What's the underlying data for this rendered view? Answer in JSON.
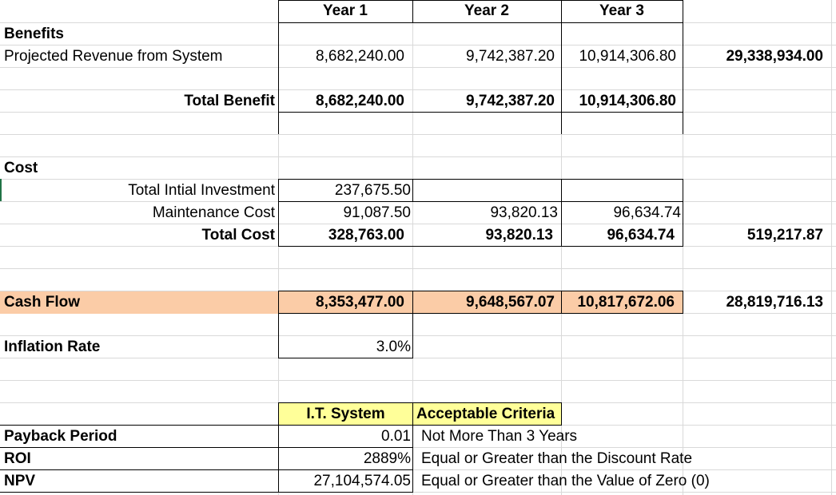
{
  "header": {
    "year1": "Year 1",
    "year2": "Year 2",
    "year3": "Year 3"
  },
  "benefits": {
    "section_label": "Benefits",
    "revenue_label": "Projected Revenue from System",
    "revenue": [
      "8,682,240.00",
      "9,742,387.20",
      "10,914,306.80"
    ],
    "revenue_total": "29,338,934.00",
    "total_label": "Total Benefit",
    "total": [
      "8,682,240.00",
      "9,742,387.20",
      "10,914,306.80"
    ]
  },
  "cost": {
    "section_label": "Cost",
    "investment_label": "Total Intial Investment",
    "investment": "237,675.50",
    "maintenance_label": "Maintenance Cost",
    "maintenance": [
      "91,087.50",
      "93,820.13",
      "96,634.74"
    ],
    "total_label": "Total Cost",
    "total": [
      "328,763.00",
      "93,820.13",
      "96,634.74"
    ],
    "total_sum": "519,217.87"
  },
  "cash_flow": {
    "label": "Cash Flow",
    "values": [
      "8,353,477.00",
      "9,648,567.07",
      "10,817,672.06"
    ],
    "total": "28,819,716.13"
  },
  "inflation": {
    "label": "Inflation Rate",
    "value": "3.0%"
  },
  "evaluation": {
    "system_header": "I.T. System",
    "criteria_header": "Acceptable Criteria",
    "rows": [
      {
        "label": "Payback Period",
        "value": "0.01",
        "criteria": "Not More Than 3 Years"
      },
      {
        "label": "ROI",
        "value": "2889%",
        "criteria": "Equal or Greater than the Discount Rate"
      },
      {
        "label": "NPV",
        "value": "27,104,574.05",
        "criteria": "Equal or Greater than the Value of Zero (0)"
      }
    ]
  },
  "colors": {
    "cash_flow_fill": "#fbcca7",
    "header_fill": "#ffff99",
    "gridline": "#d9d9d9"
  }
}
